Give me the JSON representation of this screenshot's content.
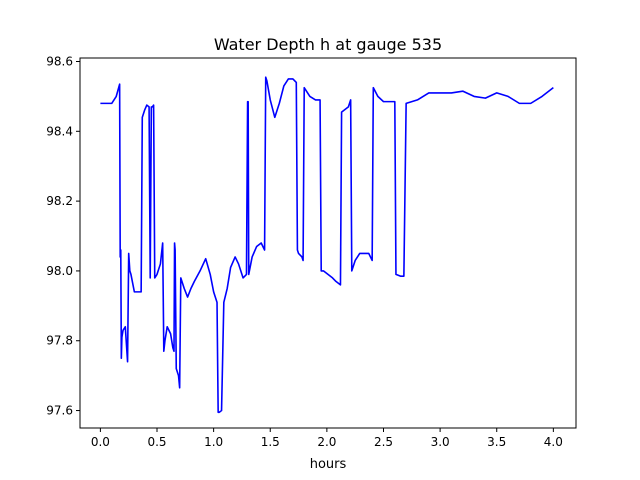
{
  "chart_data": {
    "type": "line",
    "title": "Water Depth h at gauge 535",
    "xlabel": "hours",
    "ylabel": "",
    "xlim": [
      -0.18,
      4.2
    ],
    "ylim": [
      97.55,
      98.61
    ],
    "grid": false,
    "xticks": [
      0.0,
      0.5,
      1.0,
      1.5,
      2.0,
      2.5,
      3.0,
      3.5,
      4.0
    ],
    "xtick_labels": [
      "0.0",
      "0.5",
      "1.0",
      "1.5",
      "2.0",
      "2.5",
      "3.0",
      "3.5",
      "4.0"
    ],
    "yticks": [
      97.6,
      97.8,
      98.0,
      98.2,
      98.4,
      98.6
    ],
    "ytick_labels": [
      "97.6",
      "97.8",
      "98.0",
      "98.2",
      "98.4",
      "98.6"
    ],
    "line_color": "#0000ff",
    "series": [
      {
        "x": [
          0.0,
          0.05,
          0.1,
          0.14,
          0.17,
          0.175,
          0.18,
          0.185,
          0.19,
          0.2,
          0.22,
          0.24,
          0.25,
          0.26,
          0.27,
          0.3,
          0.36,
          0.37,
          0.39,
          0.41,
          0.43,
          0.44,
          0.45,
          0.46,
          0.47,
          0.48,
          0.5,
          0.53,
          0.55,
          0.56,
          0.57,
          0.59,
          0.62,
          0.64,
          0.65,
          0.655,
          0.66,
          0.67,
          0.69,
          0.7,
          0.71,
          0.74,
          0.77,
          0.8,
          0.83,
          0.88,
          0.93,
          0.97,
          1.0,
          1.03,
          1.04,
          1.05,
          1.07,
          1.09,
          1.12,
          1.15,
          1.19,
          1.22,
          1.26,
          1.29,
          1.3,
          1.305,
          1.31,
          1.34,
          1.38,
          1.42,
          1.45,
          1.46,
          1.47,
          1.5,
          1.54,
          1.58,
          1.62,
          1.66,
          1.7,
          1.73,
          1.74,
          1.75,
          1.78,
          1.79,
          1.8,
          1.85,
          1.9,
          1.94,
          1.95,
          1.97,
          2.01,
          2.05,
          2.08,
          2.12,
          2.13,
          2.15,
          2.19,
          2.21,
          2.22,
          2.25,
          2.29,
          2.34,
          2.37,
          2.4,
          2.41,
          2.45,
          2.5,
          2.57,
          2.6,
          2.61,
          2.65,
          2.68,
          2.7,
          2.8,
          2.9,
          3.0,
          3.05,
          3.1,
          3.2,
          3.3,
          3.4,
          3.5,
          3.6,
          3.7,
          3.8,
          3.9,
          4.0
        ],
        "y": [
          98.48,
          98.48,
          98.48,
          98.5,
          98.535,
          98.04,
          98.06,
          97.75,
          97.81,
          97.83,
          97.84,
          97.74,
          98.05,
          98.0,
          97.99,
          97.94,
          97.94,
          98.44,
          98.46,
          98.475,
          98.47,
          97.98,
          98.47,
          98.47,
          98.475,
          97.98,
          97.99,
          98.02,
          98.08,
          97.77,
          97.8,
          97.84,
          97.82,
          97.78,
          97.77,
          98.08,
          98.06,
          97.72,
          97.7,
          97.665,
          97.98,
          97.95,
          97.925,
          97.95,
          97.97,
          98.0,
          98.035,
          97.99,
          97.94,
          97.91,
          97.595,
          97.595,
          97.6,
          97.91,
          97.95,
          98.01,
          98.04,
          98.02,
          97.98,
          97.99,
          98.485,
          98.485,
          97.99,
          98.04,
          98.07,
          98.08,
          98.06,
          98.555,
          98.545,
          98.49,
          98.44,
          98.48,
          98.53,
          98.55,
          98.55,
          98.54,
          98.06,
          98.05,
          98.04,
          98.03,
          98.525,
          98.5,
          98.49,
          98.49,
          98.0,
          98.0,
          97.99,
          97.98,
          97.97,
          97.96,
          98.455,
          98.46,
          98.47,
          98.49,
          98.0,
          98.03,
          98.05,
          98.05,
          98.05,
          98.03,
          98.525,
          98.5,
          98.485,
          98.485,
          98.485,
          97.99,
          97.985,
          97.985,
          98.48,
          98.49,
          98.51,
          98.51,
          98.51,
          98.51,
          98.515,
          98.5,
          98.495,
          98.51,
          98.5,
          98.48,
          98.48,
          98.5,
          98.525
        ]
      }
    ]
  }
}
